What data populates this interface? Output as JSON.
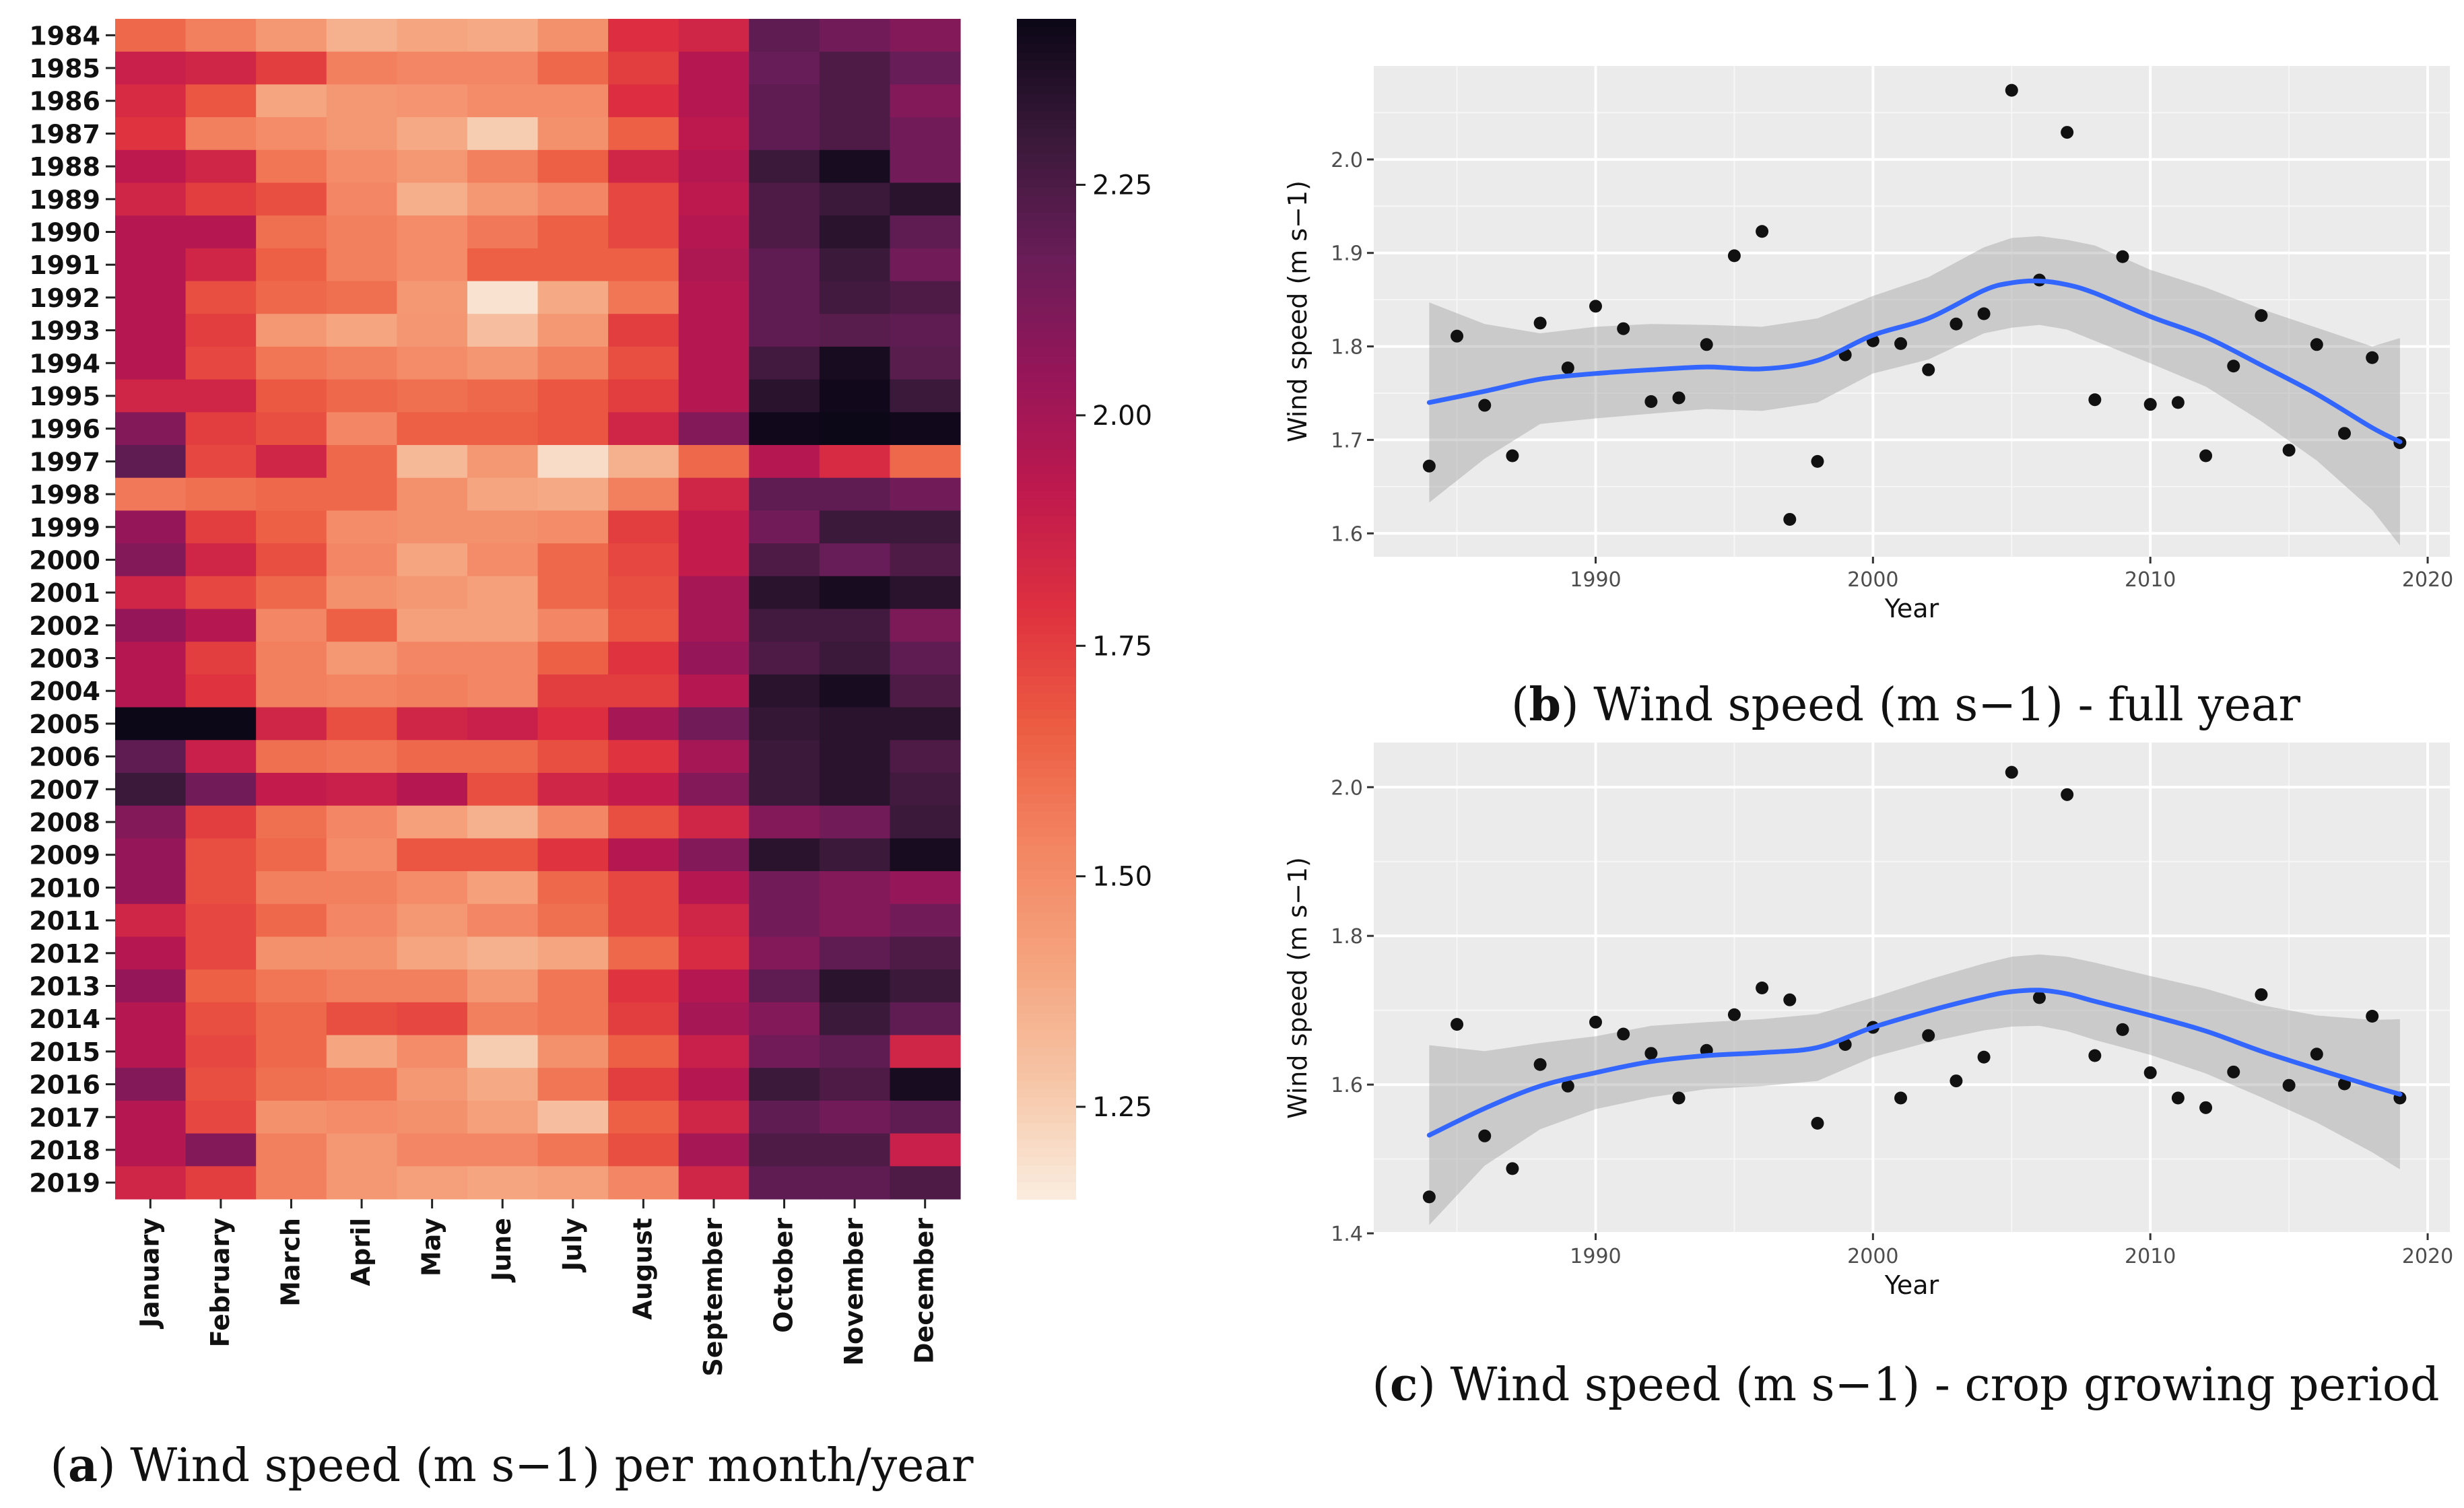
{
  "panel_a": {
    "caption_label": "a",
    "caption_text": "Wind speed (m s−1) per month/year"
  },
  "panel_b": {
    "caption_label": "b",
    "caption_text": "Wind speed (m s−1) - full year"
  },
  "panel_c": {
    "caption_label": "c",
    "caption_text": "Wind speed (m s−1) - crop growing period"
  },
  "chart_data": [
    {
      "type": "heatmap",
      "title": "Wind speed (m s−1) per month/year",
      "rows": [
        "1984",
        "1985",
        "1986",
        "1987",
        "1988",
        "1989",
        "1990",
        "1991",
        "1992",
        "1993",
        "1994",
        "1995",
        "1996",
        "1997",
        "1998",
        "1999",
        "2000",
        "2001",
        "2002",
        "2003",
        "2004",
        "2005",
        "2006",
        "2007",
        "2008",
        "2009",
        "2010",
        "2011",
        "2012",
        "2013",
        "2014",
        "2015",
        "2016",
        "2017",
        "2018",
        "2019"
      ],
      "columns": [
        "January",
        "February",
        "March",
        "April",
        "May",
        "June",
        "July",
        "August",
        "September",
        "October",
        "November",
        "December"
      ],
      "values": [
        [
          1.62,
          1.55,
          1.45,
          1.35,
          1.4,
          1.38,
          1.48,
          1.8,
          1.85,
          2.2,
          2.15,
          2.1
        ],
        [
          1.88,
          1.85,
          1.75,
          1.55,
          1.52,
          1.52,
          1.62,
          1.75,
          1.95,
          2.18,
          2.25,
          2.18
        ],
        [
          1.82,
          1.68,
          1.4,
          1.45,
          1.47,
          1.5,
          1.5,
          1.8,
          1.95,
          2.2,
          2.25,
          2.1
        ],
        [
          1.78,
          1.55,
          1.5,
          1.45,
          1.38,
          1.25,
          1.48,
          1.65,
          1.92,
          2.2,
          2.25,
          2.15
        ],
        [
          1.92,
          1.85,
          1.58,
          1.5,
          1.45,
          1.55,
          1.65,
          1.85,
          1.95,
          2.3,
          2.4,
          2.15
        ],
        [
          1.85,
          1.75,
          1.7,
          1.52,
          1.36,
          1.45,
          1.52,
          1.72,
          1.92,
          2.25,
          2.3,
          2.35
        ],
        [
          1.95,
          1.95,
          1.6,
          1.55,
          1.5,
          1.57,
          1.65,
          1.72,
          1.95,
          2.25,
          2.35,
          2.2
        ],
        [
          1.95,
          1.85,
          1.65,
          1.55,
          1.5,
          1.65,
          1.65,
          1.65,
          1.97,
          2.2,
          2.3,
          2.15
        ],
        [
          1.95,
          1.7,
          1.62,
          1.6,
          1.45,
          1.18,
          1.38,
          1.58,
          1.95,
          2.2,
          2.28,
          2.25
        ],
        [
          1.95,
          1.75,
          1.45,
          1.4,
          1.46,
          1.3,
          1.45,
          1.75,
          1.95,
          2.2,
          2.22,
          2.2
        ],
        [
          1.95,
          1.72,
          1.58,
          1.55,
          1.5,
          1.46,
          1.55,
          1.7,
          1.95,
          2.28,
          2.4,
          2.22
        ],
        [
          1.85,
          1.85,
          1.67,
          1.62,
          1.6,
          1.62,
          1.68,
          1.75,
          1.95,
          2.35,
          2.42,
          2.3
        ],
        [
          2.1,
          1.75,
          1.7,
          1.52,
          1.65,
          1.65,
          1.68,
          1.85,
          2.1,
          2.42,
          2.45,
          2.42
        ],
        [
          2.2,
          1.72,
          1.85,
          1.62,
          1.32,
          1.45,
          1.2,
          1.35,
          1.62,
          1.95,
          1.82,
          1.62
        ],
        [
          1.57,
          1.6,
          1.62,
          1.62,
          1.48,
          1.4,
          1.38,
          1.55,
          1.85,
          2.2,
          2.2,
          2.15
        ],
        [
          2.05,
          1.75,
          1.65,
          1.5,
          1.48,
          1.48,
          1.5,
          1.75,
          1.9,
          2.15,
          2.3,
          2.3
        ],
        [
          2.1,
          1.85,
          1.7,
          1.52,
          1.4,
          1.5,
          1.62,
          1.72,
          1.9,
          2.25,
          2.18,
          2.25
        ],
        [
          1.85,
          1.72,
          1.62,
          1.48,
          1.45,
          1.42,
          1.62,
          1.7,
          2.0,
          2.35,
          2.4,
          2.35
        ],
        [
          2.05,
          1.95,
          1.52,
          1.65,
          1.42,
          1.42,
          1.52,
          1.68,
          2.0,
          2.28,
          2.28,
          2.12
        ],
        [
          1.95,
          1.75,
          1.55,
          1.45,
          1.52,
          1.52,
          1.65,
          1.78,
          2.05,
          2.25,
          2.3,
          2.2
        ],
        [
          1.95,
          1.78,
          1.55,
          1.53,
          1.55,
          1.52,
          1.75,
          1.75,
          1.95,
          2.35,
          2.4,
          2.25
        ],
        [
          2.45,
          2.45,
          1.85,
          1.7,
          1.85,
          1.88,
          1.8,
          2.0,
          2.15,
          2.32,
          2.35,
          2.35
        ],
        [
          2.2,
          1.88,
          1.6,
          1.58,
          1.62,
          1.62,
          1.7,
          1.78,
          2.0,
          2.3,
          2.35,
          2.25
        ],
        [
          2.3,
          2.15,
          1.9,
          1.88,
          1.95,
          1.7,
          1.85,
          1.9,
          2.1,
          2.3,
          2.35,
          2.28
        ],
        [
          2.1,
          1.75,
          1.6,
          1.52,
          1.42,
          1.35,
          1.52,
          1.7,
          1.85,
          2.1,
          2.15,
          2.3
        ],
        [
          2.05,
          1.7,
          1.62,
          1.5,
          1.68,
          1.68,
          1.78,
          1.95,
          2.1,
          2.35,
          2.3,
          2.4
        ],
        [
          2.05,
          1.7,
          1.55,
          1.55,
          1.5,
          1.42,
          1.62,
          1.72,
          1.95,
          2.15,
          2.1,
          2.05
        ],
        [
          1.85,
          1.72,
          1.62,
          1.52,
          1.45,
          1.52,
          1.6,
          1.72,
          1.85,
          2.15,
          2.1,
          2.15
        ],
        [
          1.95,
          1.72,
          1.48,
          1.48,
          1.4,
          1.35,
          1.4,
          1.62,
          1.82,
          2.1,
          2.2,
          2.25
        ],
        [
          2.05,
          1.65,
          1.58,
          1.55,
          1.55,
          1.45,
          1.58,
          1.78,
          1.95,
          2.2,
          2.35,
          2.3
        ],
        [
          1.95,
          1.7,
          1.62,
          1.7,
          1.72,
          1.55,
          1.58,
          1.75,
          2.0,
          2.1,
          2.3,
          2.2
        ],
        [
          1.95,
          1.72,
          1.62,
          1.4,
          1.5,
          1.25,
          1.48,
          1.65,
          1.88,
          2.15,
          2.2,
          1.85
        ],
        [
          2.1,
          1.7,
          1.6,
          1.58,
          1.45,
          1.38,
          1.58,
          1.75,
          1.95,
          2.3,
          2.25,
          2.4
        ],
        [
          1.95,
          1.72,
          1.48,
          1.5,
          1.48,
          1.42,
          1.3,
          1.65,
          1.85,
          2.2,
          2.15,
          2.2
        ],
        [
          1.95,
          2.1,
          1.55,
          1.45,
          1.52,
          1.52,
          1.58,
          1.7,
          2.0,
          2.25,
          2.25,
          1.88
        ],
        [
          1.85,
          1.75,
          1.55,
          1.45,
          1.42,
          1.4,
          1.42,
          1.52,
          1.85,
          2.2,
          2.2,
          2.25
        ]
      ],
      "colorbar": {
        "min": 1.15,
        "max": 2.43,
        "ticks": [
          1.25,
          1.5,
          1.75,
          2.0,
          2.25
        ],
        "tick_labels": [
          "1.25",
          "1.50",
          "1.75",
          "2.00",
          "2.25"
        ]
      }
    },
    {
      "type": "scatter",
      "title": "Wind speed (m s−1) - full year",
      "xlabel": "Year",
      "ylabel": "Wind speed (m s−1)",
      "xlim": [
        1982,
        2020.8
      ],
      "ylim": [
        1.575,
        2.1
      ],
      "xticks": [
        1990,
        2000,
        2010,
        2020
      ],
      "xtick_labels": [
        "1990",
        "2000",
        "2010",
        "2020"
      ],
      "yticks": [
        1.6,
        1.7,
        1.8,
        1.9,
        2.0
      ],
      "ytick_labels": [
        "1.6",
        "1.7",
        "1.8",
        "1.9",
        "2.0"
      ],
      "points": {
        "x": [
          1984,
          1985,
          1986,
          1987,
          1988,
          1989,
          1990,
          1991,
          1992,
          1993,
          1994,
          1995,
          1996,
          1997,
          1998,
          1999,
          2000,
          2001,
          2002,
          2003,
          2004,
          2005,
          2006,
          2007,
          2008,
          2009,
          2010,
          2011,
          2012,
          2013,
          2014,
          2015,
          2016,
          2017,
          2018,
          2019
        ],
        "y": [
          1.672,
          1.811,
          1.737,
          1.683,
          1.825,
          1.777,
          1.843,
          1.819,
          1.741,
          1.745,
          1.802,
          1.897,
          1.923,
          1.615,
          1.677,
          1.791,
          1.806,
          1.803,
          1.775,
          1.824,
          1.835,
          2.074,
          1.871,
          2.029,
          1.743,
          1.896,
          1.738,
          1.74,
          1.683,
          1.779,
          1.833,
          1.689,
          1.802,
          1.707,
          1.788,
          1.697
        ]
      },
      "smooth": {
        "x": [
          1984,
          1986,
          1988,
          1990,
          1992,
          1994,
          1996,
          1998,
          2000,
          2002,
          2004,
          2005,
          2006,
          2007,
          2008,
          2010,
          2012,
          2014,
          2016,
          2018,
          2019
        ],
        "y": [
          1.74,
          1.752,
          1.765,
          1.771,
          1.775,
          1.778,
          1.776,
          1.785,
          1.812,
          1.83,
          1.86,
          1.868,
          1.87,
          1.866,
          1.857,
          1.832,
          1.81,
          1.78,
          1.749,
          1.713,
          1.698
        ],
        "lower": [
          1.633,
          1.68,
          1.717,
          1.723,
          1.728,
          1.733,
          1.731,
          1.74,
          1.771,
          1.786,
          1.814,
          1.82,
          1.823,
          1.818,
          1.806,
          1.782,
          1.757,
          1.72,
          1.678,
          1.625,
          1.587
        ],
        "upper": [
          1.847,
          1.824,
          1.814,
          1.821,
          1.824,
          1.823,
          1.821,
          1.83,
          1.854,
          1.874,
          1.906,
          1.916,
          1.918,
          1.914,
          1.908,
          1.882,
          1.863,
          1.84,
          1.82,
          1.8,
          1.809
        ]
      }
    },
    {
      "type": "scatter",
      "title": "Wind speed (m s−1) - crop growing period",
      "xlabel": "Year",
      "ylabel": "Wind speed (m s−1)",
      "xlim": [
        1982,
        2020.8
      ],
      "ylim": [
        1.4,
        2.06
      ],
      "xticks": [
        1990,
        2000,
        2010,
        2020
      ],
      "xtick_labels": [
        "1990",
        "2000",
        "2010",
        "2020"
      ],
      "yticks": [
        1.4,
        1.6,
        1.8,
        2.0
      ],
      "ytick_labels": [
        "1.4",
        "1.6",
        "1.8",
        "2.0"
      ],
      "points": {
        "x": [
          1984,
          1985,
          1986,
          1987,
          1988,
          1989,
          1990,
          1991,
          1992,
          1993,
          1994,
          1995,
          1996,
          1997,
          1998,
          1999,
          2000,
          2001,
          2002,
          2003,
          2004,
          2005,
          2006,
          2007,
          2008,
          2009,
          2010,
          2011,
          2012,
          2013,
          2014,
          2015,
          2016,
          2017,
          2018,
          2019
        ],
        "y": [
          1.449,
          1.681,
          1.531,
          1.487,
          1.627,
          1.598,
          1.684,
          1.668,
          1.642,
          1.582,
          1.646,
          1.694,
          1.73,
          1.714,
          1.548,
          1.654,
          1.677,
          1.582,
          1.666,
          1.605,
          1.637,
          2.02,
          1.717,
          1.99,
          1.639,
          1.674,
          1.616,
          1.582,
          1.569,
          1.617,
          1.721,
          1.599,
          1.641,
          1.601,
          1.692,
          1.582
        ]
      },
      "smooth": {
        "x": [
          1984,
          1986,
          1988,
          1990,
          1992,
          1994,
          1996,
          1998,
          2000,
          2002,
          2004,
          2005,
          2006,
          2007,
          2008,
          2010,
          2012,
          2014,
          2016,
          2018,
          2019
        ],
        "y": [
          1.532,
          1.568,
          1.598,
          1.616,
          1.631,
          1.639,
          1.643,
          1.65,
          1.677,
          1.699,
          1.718,
          1.725,
          1.727,
          1.722,
          1.712,
          1.693,
          1.672,
          1.645,
          1.621,
          1.598,
          1.587
        ],
        "lower": [
          1.411,
          1.491,
          1.54,
          1.567,
          1.583,
          1.594,
          1.598,
          1.605,
          1.637,
          1.657,
          1.673,
          1.678,
          1.679,
          1.672,
          1.66,
          1.64,
          1.615,
          1.583,
          1.549,
          1.509,
          1.486
        ],
        "upper": [
          1.653,
          1.645,
          1.656,
          1.665,
          1.679,
          1.684,
          1.688,
          1.695,
          1.717,
          1.741,
          1.763,
          1.772,
          1.775,
          1.772,
          1.764,
          1.746,
          1.729,
          1.707,
          1.693,
          1.687,
          1.688
        ]
      }
    }
  ]
}
